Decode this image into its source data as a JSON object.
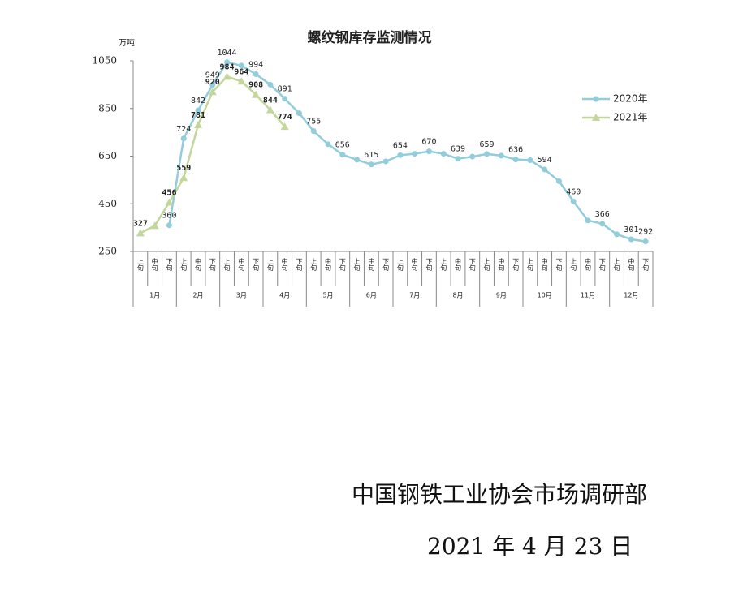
{
  "chart_data": {
    "type": "line",
    "title": "螺纹钢库存监测情况",
    "y_unit": "万吨",
    "categories": [
      "上旬",
      "中旬",
      "下旬",
      "上旬",
      "中旬",
      "下旬",
      "上旬",
      "中旬",
      "下旬",
      "上旬",
      "中旬",
      "下旬",
      "上旬",
      "中旬",
      "下旬",
      "上旬",
      "中旬",
      "下旬",
      "上旬",
      "中旬",
      "下旬",
      "上旬",
      "中旬",
      "下旬",
      "上旬",
      "中旬",
      "下旬",
      "上旬",
      "中旬",
      "下旬",
      "上旬",
      "中旬",
      "下旬",
      "上旬",
      "中旬",
      "下旬"
    ],
    "groups": [
      "1月",
      "2月",
      "3月",
      "4月",
      "5月",
      "6月",
      "7月",
      "8月",
      "9月",
      "10月",
      "11月",
      "12月"
    ],
    "series": [
      {
        "name": "2020年",
        "color": "#92cddc",
        "values": [
          null,
          null,
          360,
          724,
          842,
          949,
          1044,
          1030,
          994,
          950,
          891,
          830,
          755,
          700,
          656,
          635,
          615,
          628,
          654,
          660,
          670,
          660,
          639,
          648,
          659,
          652,
          636,
          633,
          594,
          545,
          460,
          380,
          366,
          322,
          301,
          292
        ],
        "value_labels": [
          null,
          null,
          "360",
          "724",
          "842",
          "949",
          "1044",
          null,
          "994",
          null,
          "891",
          null,
          "755",
          null,
          "656",
          null,
          "615",
          null,
          "654",
          null,
          "670",
          null,
          "639",
          null,
          "659",
          null,
          "636",
          null,
          "594",
          null,
          "460",
          null,
          "366",
          null,
          "301",
          "292"
        ]
      },
      {
        "name": "2021年",
        "color": "#c3d69b",
        "values": [
          327,
          358,
          456,
          559,
          781,
          920,
          984,
          964,
          908,
          844,
          774,
          null,
          null,
          null,
          null,
          null,
          null,
          null,
          null,
          null,
          null,
          null,
          null,
          null,
          null,
          null,
          null,
          null,
          null,
          null,
          null,
          null,
          null,
          null,
          null,
          null
        ],
        "value_labels": [
          "327",
          null,
          "456",
          "559",
          "781",
          "920",
          "984",
          "964",
          "908",
          "844",
          "774",
          null,
          null,
          null,
          null,
          null,
          null,
          null,
          null,
          null,
          null,
          null,
          null,
          null,
          null,
          null,
          null,
          null,
          null,
          null,
          null,
          null,
          null,
          null,
          null,
          null
        ]
      }
    ],
    "ylim": [
      250,
      1050
    ],
    "yticks": [
      250,
      450,
      650,
      850,
      1050
    ],
    "grid": false,
    "legend": "right"
  },
  "footer": {
    "org": "中国钢铁工业协会市场调研部",
    "date": "2021 年 4 月 23 日"
  }
}
